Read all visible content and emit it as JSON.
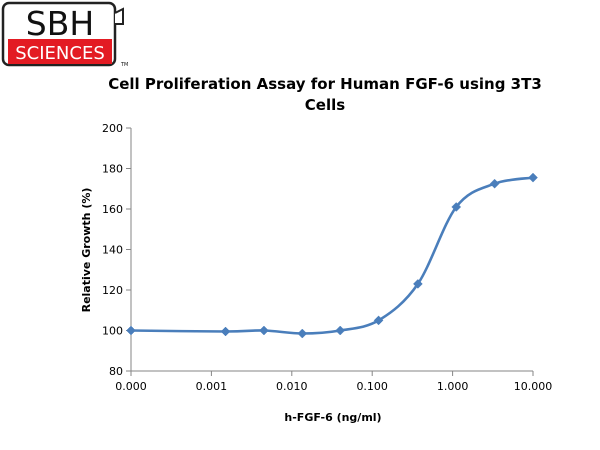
{
  "logo": {
    "line1": "SBH",
    "line2": "SCIENCES",
    "trademark": "TM"
  },
  "colors": {
    "series": "#4a7ebb",
    "logo_red": "#e31b23",
    "axis": "#868686"
  },
  "chart_data": {
    "type": "line",
    "title": "Cell Proliferation Assay for Human FGF-6 using 3T3 Cells",
    "xlabel": "h-FGF-6 (ng/ml)",
    "ylabel": "Relative Growth (%)",
    "x_scale": "log",
    "x_tick_labels": [
      "0.000",
      "0.001",
      "0.010",
      "0.100",
      "1.000",
      "10.000"
    ],
    "y_ticks": [
      80,
      100,
      120,
      140,
      160,
      180,
      200
    ],
    "ylim": [
      80,
      200
    ],
    "grid": false,
    "series": [
      {
        "x": [
          0.0001,
          0.0015,
          0.0045,
          0.0135,
          0.04,
          0.12,
          0.37,
          1.11,
          3.33,
          10.0
        ],
        "values": [
          100,
          99.5,
          100,
          98.5,
          100,
          105,
          123,
          161,
          172.5,
          175.5
        ]
      }
    ]
  }
}
